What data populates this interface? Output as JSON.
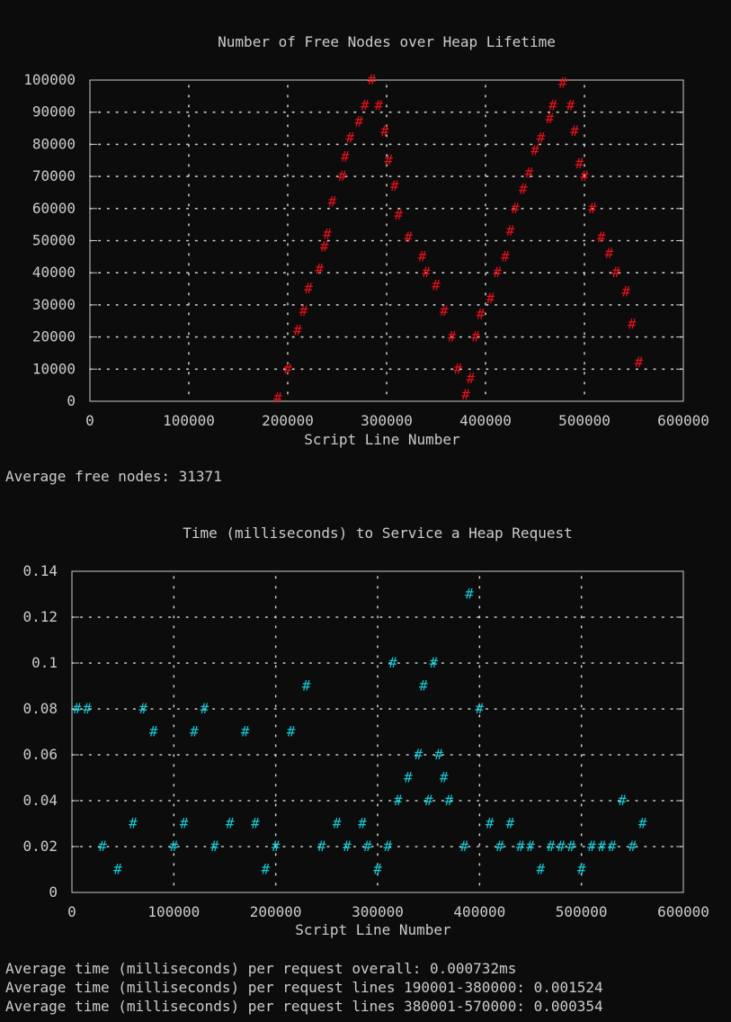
{
  "colors": {
    "background": "#0c0c0c",
    "foreground": "#cccccc",
    "free_nodes_marks": "#e8101a",
    "request_time_marks": "#14c8d2"
  },
  "chart_data": [
    {
      "type": "scatter",
      "style": "ascii-gnuplot",
      "title": "Number of Free Nodes over Heap Lifetime",
      "xlabel": "Script Line Number",
      "ylabel": "",
      "xlim": [
        0,
        600000
      ],
      "ylim": [
        0,
        100000
      ],
      "x_ticks": [
        "0",
        "100000",
        "200000",
        "300000",
        "400000",
        "500000",
        "600000"
      ],
      "y_ticks": [
        "100000",
        "90000",
        "80000",
        "70000",
        "60000",
        "50000",
        "40000",
        "30000",
        "20000",
        "10000",
        "0"
      ],
      "grid": true,
      "mark_color": "#e8101a",
      "series": [
        {
          "x": [
            190000,
            200000,
            210000,
            216000,
            221000,
            232000,
            237000,
            240000,
            245000,
            255000,
            258000,
            263000,
            272000,
            278000,
            285000,
            292000,
            298000,
            302000,
            308000,
            312000,
            322000,
            336000,
            340000,
            350000,
            358000,
            366000,
            372000,
            380000,
            385000,
            390000,
            395000,
            405000,
            412000,
            420000,
            425000,
            430000,
            438000,
            444000,
            450000,
            456000,
            465000,
            468000,
            478000,
            486000,
            490000,
            495000,
            500000,
            508000,
            517000,
            525000,
            532000,
            542000,
            548000,
            555000
          ],
          "y": [
            1000,
            10000,
            22000,
            28000,
            35000,
            41000,
            48000,
            52000,
            62000,
            70000,
            76000,
            82000,
            87000,
            92000,
            100000,
            92000,
            84000,
            75000,
            67000,
            58000,
            51000,
            45000,
            40000,
            36000,
            28000,
            20000,
            10000,
            2000,
            7000,
            20000,
            27000,
            32000,
            40000,
            45000,
            53000,
            60000,
            66000,
            71000,
            78000,
            82000,
            88000,
            92000,
            99000,
            92000,
            84000,
            74000,
            70000,
            60000,
            51000,
            46000,
            40000,
            34000,
            24000,
            12000
          ]
        }
      ]
    },
    {
      "type": "scatter",
      "style": "ascii-gnuplot",
      "title": "Time (milliseconds) to Service a Heap Request",
      "xlabel": "Script Line Number",
      "ylabel": "",
      "xlim": [
        0,
        600000
      ],
      "ylim": [
        0,
        0.14
      ],
      "x_ticks": [
        "0",
        "100000",
        "200000",
        "300000",
        "400000",
        "500000",
        "600000"
      ],
      "y_ticks": [
        "0.14",
        "0.12",
        "0.1",
        "0.08",
        "0.06",
        "0.04",
        "0.02",
        "0"
      ],
      "grid": true,
      "mark_color": "#14c8d2",
      "series": [
        {
          "x": [
            5000,
            15000,
            30000,
            45000,
            60000,
            70000,
            80000,
            100000,
            110000,
            120000,
            130000,
            140000,
            155000,
            170000,
            180000,
            190000,
            200000,
            215000,
            230000,
            245000,
            260000,
            270000,
            285000,
            290000,
            300000,
            310000,
            315000,
            320000,
            330000,
            340000,
            345000,
            350000,
            355000,
            360000,
            365000,
            370000,
            385000,
            390000,
            400000,
            410000,
            420000,
            430000,
            440000,
            450000,
            460000,
            470000,
            480000,
            490000,
            500000,
            510000,
            520000,
            530000,
            540000,
            550000,
            560000
          ],
          "y": [
            0.08,
            0.08,
            0.02,
            0.01,
            0.03,
            0.08,
            0.07,
            0.02,
            0.03,
            0.07,
            0.08,
            0.02,
            0.03,
            0.07,
            0.03,
            0.01,
            0.02,
            0.07,
            0.09,
            0.02,
            0.03,
            0.02,
            0.03,
            0.02,
            0.01,
            0.02,
            0.1,
            0.04,
            0.05,
            0.06,
            0.09,
            0.04,
            0.1,
            0.06,
            0.05,
            0.04,
            0.02,
            0.13,
            0.08,
            0.03,
            0.02,
            0.03,
            0.02,
            0.02,
            0.01,
            0.02,
            0.02,
            0.02,
            0.01,
            0.02,
            0.02,
            0.02,
            0.04,
            0.02,
            0.03
          ]
        }
      ]
    }
  ],
  "summaries": {
    "free_nodes_average": "Average free nodes: 31371",
    "time_overall": "Average time (milliseconds) per request overall: 0.000732ms",
    "time_first_range": "Average time (milliseconds) per request lines 190001-380000: 0.001524",
    "time_second_range": "Average time (milliseconds) per request lines 380001-570000: 0.000354"
  }
}
